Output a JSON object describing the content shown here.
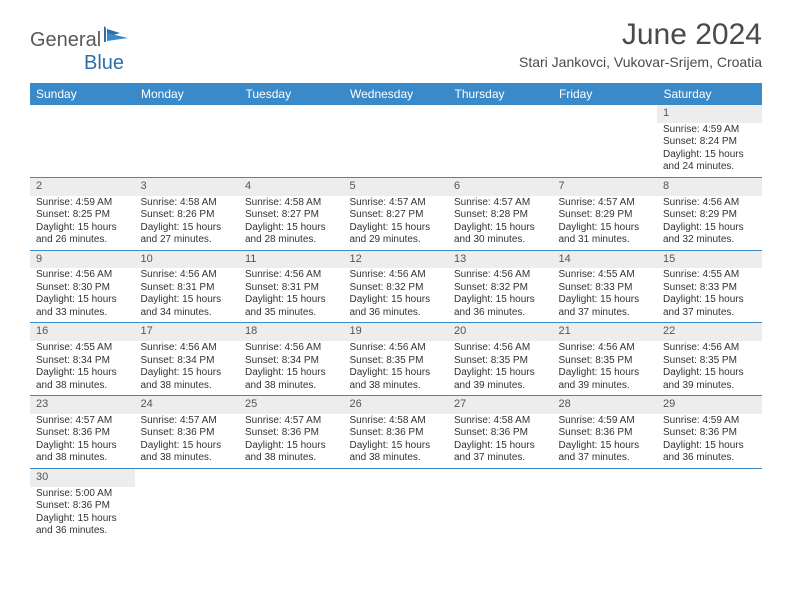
{
  "logo": {
    "text1": "General",
    "text2": "Blue"
  },
  "title": "June 2024",
  "location": "Stari Jankovci, Vukovar-Srijem, Croatia",
  "weekdays": [
    "Sunday",
    "Monday",
    "Tuesday",
    "Wednesday",
    "Thursday",
    "Friday",
    "Saturday"
  ],
  "colors": {
    "header_bg": "#3a89c9",
    "header_fg": "#ffffff",
    "daynum_bg": "#ededed",
    "border": "#3a89c9",
    "text": "#333333",
    "logo_gray": "#5a5a5a",
    "logo_blue": "#2f6fa8"
  },
  "grid": [
    [
      null,
      null,
      null,
      null,
      null,
      null,
      {
        "n": "1",
        "sr": "4:59 AM",
        "ss": "8:24 PM",
        "dl": "15 hours and 24 minutes."
      }
    ],
    [
      {
        "n": "2",
        "sr": "4:59 AM",
        "ss": "8:25 PM",
        "dl": "15 hours and 26 minutes."
      },
      {
        "n": "3",
        "sr": "4:58 AM",
        "ss": "8:26 PM",
        "dl": "15 hours and 27 minutes."
      },
      {
        "n": "4",
        "sr": "4:58 AM",
        "ss": "8:27 PM",
        "dl": "15 hours and 28 minutes."
      },
      {
        "n": "5",
        "sr": "4:57 AM",
        "ss": "8:27 PM",
        "dl": "15 hours and 29 minutes."
      },
      {
        "n": "6",
        "sr": "4:57 AM",
        "ss": "8:28 PM",
        "dl": "15 hours and 30 minutes."
      },
      {
        "n": "7",
        "sr": "4:57 AM",
        "ss": "8:29 PM",
        "dl": "15 hours and 31 minutes."
      },
      {
        "n": "8",
        "sr": "4:56 AM",
        "ss": "8:29 PM",
        "dl": "15 hours and 32 minutes."
      }
    ],
    [
      {
        "n": "9",
        "sr": "4:56 AM",
        "ss": "8:30 PM",
        "dl": "15 hours and 33 minutes."
      },
      {
        "n": "10",
        "sr": "4:56 AM",
        "ss": "8:31 PM",
        "dl": "15 hours and 34 minutes."
      },
      {
        "n": "11",
        "sr": "4:56 AM",
        "ss": "8:31 PM",
        "dl": "15 hours and 35 minutes."
      },
      {
        "n": "12",
        "sr": "4:56 AM",
        "ss": "8:32 PM",
        "dl": "15 hours and 36 minutes."
      },
      {
        "n": "13",
        "sr": "4:56 AM",
        "ss": "8:32 PM",
        "dl": "15 hours and 36 minutes."
      },
      {
        "n": "14",
        "sr": "4:55 AM",
        "ss": "8:33 PM",
        "dl": "15 hours and 37 minutes."
      },
      {
        "n": "15",
        "sr": "4:55 AM",
        "ss": "8:33 PM",
        "dl": "15 hours and 37 minutes."
      }
    ],
    [
      {
        "n": "16",
        "sr": "4:55 AM",
        "ss": "8:34 PM",
        "dl": "15 hours and 38 minutes."
      },
      {
        "n": "17",
        "sr": "4:56 AM",
        "ss": "8:34 PM",
        "dl": "15 hours and 38 minutes."
      },
      {
        "n": "18",
        "sr": "4:56 AM",
        "ss": "8:34 PM",
        "dl": "15 hours and 38 minutes."
      },
      {
        "n": "19",
        "sr": "4:56 AM",
        "ss": "8:35 PM",
        "dl": "15 hours and 38 minutes."
      },
      {
        "n": "20",
        "sr": "4:56 AM",
        "ss": "8:35 PM",
        "dl": "15 hours and 39 minutes."
      },
      {
        "n": "21",
        "sr": "4:56 AM",
        "ss": "8:35 PM",
        "dl": "15 hours and 39 minutes."
      },
      {
        "n": "22",
        "sr": "4:56 AM",
        "ss": "8:35 PM",
        "dl": "15 hours and 39 minutes."
      }
    ],
    [
      {
        "n": "23",
        "sr": "4:57 AM",
        "ss": "8:36 PM",
        "dl": "15 hours and 38 minutes."
      },
      {
        "n": "24",
        "sr": "4:57 AM",
        "ss": "8:36 PM",
        "dl": "15 hours and 38 minutes."
      },
      {
        "n": "25",
        "sr": "4:57 AM",
        "ss": "8:36 PM",
        "dl": "15 hours and 38 minutes."
      },
      {
        "n": "26",
        "sr": "4:58 AM",
        "ss": "8:36 PM",
        "dl": "15 hours and 38 minutes."
      },
      {
        "n": "27",
        "sr": "4:58 AM",
        "ss": "8:36 PM",
        "dl": "15 hours and 37 minutes."
      },
      {
        "n": "28",
        "sr": "4:59 AM",
        "ss": "8:36 PM",
        "dl": "15 hours and 37 minutes."
      },
      {
        "n": "29",
        "sr": "4:59 AM",
        "ss": "8:36 PM",
        "dl": "15 hours and 36 minutes."
      }
    ],
    [
      {
        "n": "30",
        "sr": "5:00 AM",
        "ss": "8:36 PM",
        "dl": "15 hours and 36 minutes."
      },
      null,
      null,
      null,
      null,
      null,
      null
    ]
  ],
  "labels": {
    "sunrise": "Sunrise:",
    "sunset": "Sunset:",
    "daylight": "Daylight:"
  }
}
